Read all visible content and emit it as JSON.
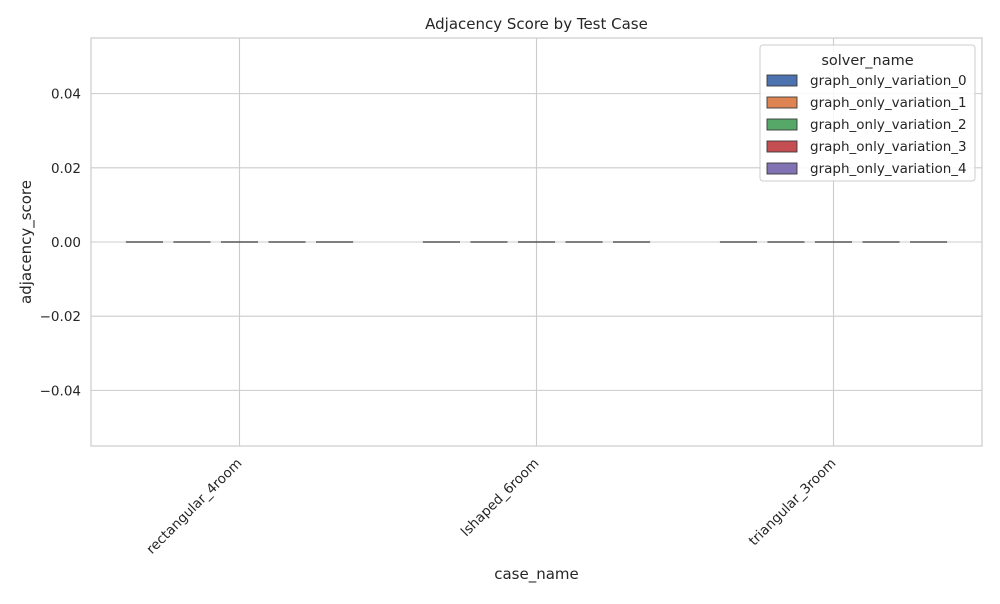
{
  "chart_data": {
    "type": "bar",
    "title": "Adjacency Score by Test Case",
    "xlabel": "case_name",
    "ylabel": "adjacency_score",
    "categories": [
      "rectangular_4room",
      "lshaped_6room",
      "triangular_3room"
    ],
    "series": [
      {
        "name": "graph_only_variation_0",
        "color": "#4c72b0",
        "values": [
          0,
          0,
          0
        ]
      },
      {
        "name": "graph_only_variation_1",
        "color": "#dd8452",
        "values": [
          0,
          0,
          0
        ]
      },
      {
        "name": "graph_only_variation_2",
        "color": "#55a868",
        "values": [
          0,
          0,
          0
        ]
      },
      {
        "name": "graph_only_variation_3",
        "color": "#c44e52",
        "values": [
          0,
          0,
          0
        ]
      },
      {
        "name": "graph_only_variation_4",
        "color": "#8172b3",
        "values": [
          0,
          0,
          0
        ]
      }
    ],
    "ylim": [
      -0.055,
      0.055
    ],
    "yticks": [
      -0.04,
      -0.02,
      0.0,
      0.02,
      0.04
    ],
    "ytick_labels": [
      "−0.04",
      "−0.02",
      "0.00",
      "0.02",
      "0.04"
    ],
    "grid": true,
    "legend": {
      "title": "solver_name",
      "placement": "top-right"
    }
  }
}
